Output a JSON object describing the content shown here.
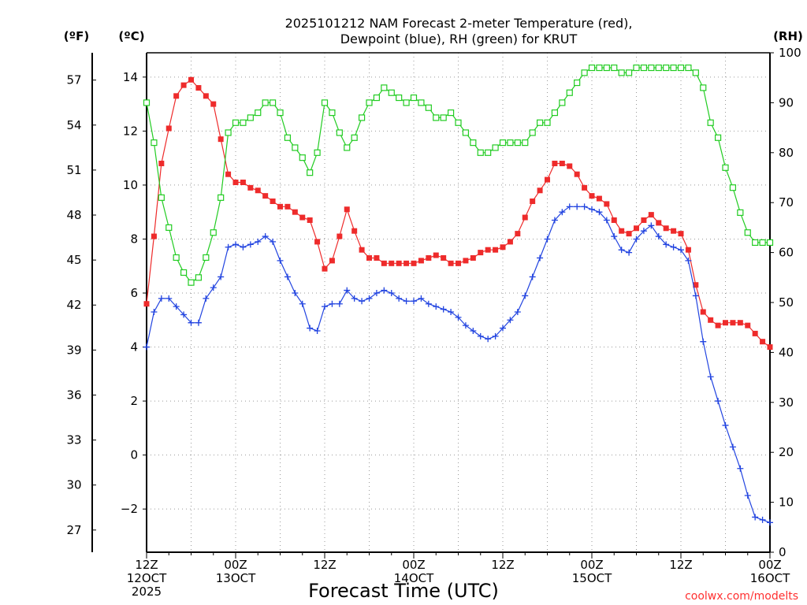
{
  "chart_data": {
    "type": "line",
    "title": [
      "2025101212 NAM Forecast 2-meter Temperature (red),",
      "Dewpoint (blue), RH (green) for KRUT"
    ],
    "xlabel": "Forecast Time (UTC)",
    "credit": "coolwx.com/modelts",
    "units": {
      "fahrenheit": "(ºF)",
      "celsius": "(ºC)",
      "rh": "(RH)"
    },
    "x_range_hours": [
      0,
      84
    ],
    "ylim_celsius": [
      -3.6,
      14.9
    ],
    "ylim_rh": [
      0,
      100
    ],
    "celsius_ticks": [
      "−2",
      "0",
      "2",
      "4",
      "6",
      "8",
      "10",
      "12",
      "14"
    ],
    "fahrenheit_ticks": [
      "27",
      "30",
      "33",
      "36",
      "39",
      "42",
      "45",
      "48",
      "51",
      "54",
      "57"
    ],
    "rh_ticks": [
      "0",
      "10",
      "20",
      "30",
      "40",
      "50",
      "60",
      "70",
      "80",
      "90",
      "100"
    ],
    "x_ticks": [
      {
        "hour": 0,
        "lines": [
          "12Z",
          "12OCT",
          "2025"
        ]
      },
      {
        "hour": 12,
        "lines": [
          "00Z",
          "13OCT"
        ]
      },
      {
        "hour": 24,
        "lines": [
          "12Z"
        ]
      },
      {
        "hour": 36,
        "lines": [
          "00Z",
          "14OCT"
        ]
      },
      {
        "hour": 48,
        "lines": [
          "12Z"
        ]
      },
      {
        "hour": 60,
        "lines": [
          "00Z",
          "15OCT"
        ]
      },
      {
        "hour": 72,
        "lines": [
          "12Z"
        ]
      },
      {
        "hour": 84,
        "lines": [
          "00Z",
          "16OCT"
        ]
      }
    ],
    "series": [
      {
        "name": "Temperature",
        "units": "°C",
        "color": "#ee2b2b",
        "marker": "filled-square",
        "values": [
          5.6,
          8.1,
          10.8,
          12.1,
          13.3,
          13.7,
          13.9,
          13.6,
          13.3,
          13.0,
          11.7,
          10.4,
          10.1,
          10.1,
          9.9,
          9.8,
          9.6,
          9.4,
          9.2,
          9.2,
          9.0,
          8.8,
          8.7,
          7.9,
          6.9,
          7.2,
          8.1,
          9.1,
          8.3,
          7.6,
          7.3,
          7.3,
          7.1,
          7.1,
          7.1,
          7.1,
          7.1,
          7.2,
          7.3,
          7.4,
          7.3,
          7.1,
          7.1,
          7.2,
          7.3,
          7.5,
          7.6,
          7.6,
          7.7,
          7.9,
          8.2,
          8.8,
          9.4,
          9.8,
          10.2,
          10.8,
          10.8,
          10.7,
          10.4,
          9.9,
          9.6,
          9.5,
          9.3,
          8.7,
          8.3,
          8.2,
          8.4,
          8.7,
          8.9,
          8.6,
          8.4,
          8.3,
          8.2,
          7.6,
          6.3,
          5.3,
          5.0,
          4.8,
          4.9,
          4.9,
          4.9,
          4.8,
          4.5,
          4.2,
          4.0
        ]
      },
      {
        "name": "Dewpoint",
        "units": "°C",
        "color": "#2244e0",
        "marker": "plus",
        "values": [
          4.0,
          5.3,
          5.8,
          5.8,
          5.5,
          5.2,
          4.9,
          4.9,
          5.8,
          6.2,
          6.6,
          7.7,
          7.8,
          7.7,
          7.8,
          7.9,
          8.1,
          7.9,
          7.2,
          6.6,
          6.0,
          5.6,
          4.7,
          4.6,
          5.5,
          5.6,
          5.6,
          6.1,
          5.8,
          5.7,
          5.8,
          6.0,
          6.1,
          6.0,
          5.8,
          5.7,
          5.7,
          5.8,
          5.6,
          5.5,
          5.4,
          5.3,
          5.1,
          4.8,
          4.6,
          4.4,
          4.3,
          4.4,
          4.7,
          5.0,
          5.3,
          5.9,
          6.6,
          7.3,
          8.0,
          8.7,
          9.0,
          9.2,
          9.2,
          9.2,
          9.1,
          9.0,
          8.7,
          8.1,
          7.6,
          7.5,
          8.0,
          8.3,
          8.5,
          8.1,
          7.8,
          7.7,
          7.6,
          7.2,
          5.9,
          4.2,
          2.9,
          2.0,
          1.1,
          0.3,
          -0.5,
          -1.5,
          -2.3,
          -2.4,
          -2.5
        ]
      },
      {
        "name": "RH",
        "units": "%",
        "color": "#22cc22",
        "marker": "open-square",
        "values": [
          90,
          82,
          71,
          65,
          59,
          56,
          54,
          55,
          59,
          64,
          71,
          84,
          86,
          86,
          87,
          88,
          90,
          90,
          88,
          83,
          81,
          79,
          76,
          80,
          90,
          88,
          84,
          81,
          83,
          87,
          90,
          91,
          93,
          92,
          91,
          90,
          91,
          90,
          89,
          87,
          87,
          88,
          86,
          84,
          82,
          80,
          80,
          81,
          82,
          82,
          82,
          82,
          84,
          86,
          86,
          88,
          90,
          92,
          94,
          96,
          97,
          97,
          97,
          97,
          96,
          96,
          97,
          97,
          97,
          97,
          97,
          97,
          97,
          97,
          96,
          93,
          86,
          83,
          77,
          73,
          68,
          64,
          62,
          62,
          62
        ]
      }
    ]
  }
}
